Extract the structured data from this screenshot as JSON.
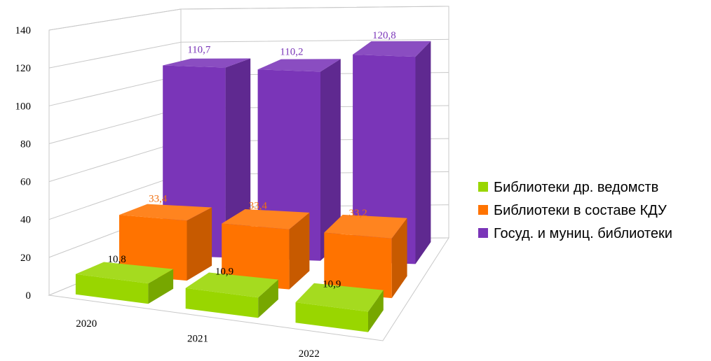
{
  "chart_data": {
    "type": "bar",
    "categories": [
      "2020",
      "2021",
      "2022"
    ],
    "ylim": [
      0,
      140
    ],
    "y_ticks": [
      "0",
      "20",
      "40",
      "60",
      "80",
      "100",
      "120",
      "140"
    ],
    "grid": true,
    "legend_position": "right",
    "series": [
      {
        "name": "Библиотеки др. ведомств",
        "values": [
          10.8,
          10.9,
          10.9
        ],
        "labels": [
          "10,8",
          "10,9",
          "10,9"
        ],
        "color": "#99d600",
        "label_color": "#000000"
      },
      {
        "name": "Библиотеки в составе КДУ",
        "values": [
          33.4,
          33.4,
          33.2
        ],
        "labels": [
          "33,4",
          "33,4",
          "33,2"
        ],
        "color": "#ff7300",
        "label_color": "#f07010"
      },
      {
        "name": "Госуд. и муниц. библиотеки",
        "values": [
          110.7,
          110.2,
          120.8
        ],
        "labels": [
          "110,7",
          "110,2",
          "120,8"
        ],
        "color": "#7a35b8",
        "label_color": "#7a35b8"
      }
    ]
  }
}
